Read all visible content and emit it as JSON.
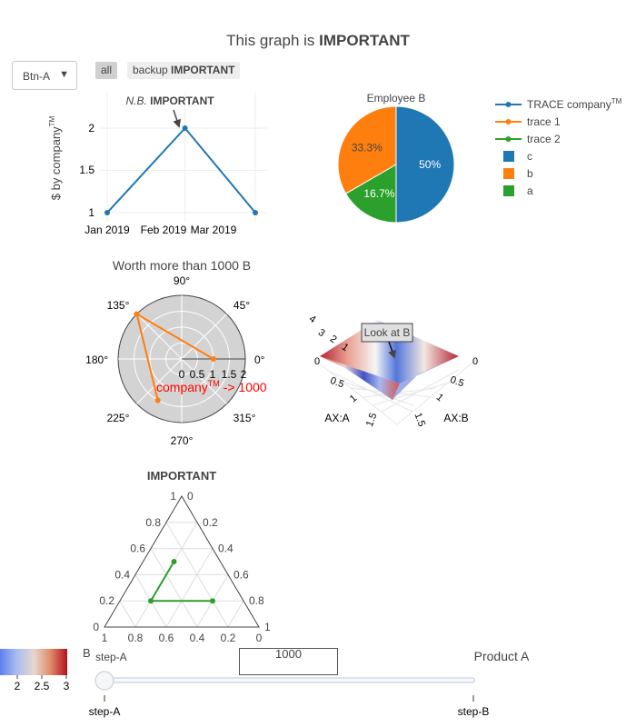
{
  "title_prefix": "This graph is ",
  "title_bold": "IMPORTANT",
  "dropdown": {
    "label": "Btn-A",
    "arrow": "▼"
  },
  "buttons": [
    {
      "prefix": "all",
      "bold": "",
      "active": true
    },
    {
      "prefix": "backup ",
      "bold": "IMPORTANT",
      "active": false
    }
  ],
  "colors": {
    "blue": "#1f77b4",
    "orange": "#ff7f0e",
    "green": "#2ca02c",
    "red": "#ff0000"
  },
  "line_chart": {
    "annotation_italic": "N.B.",
    "annotation_bold": "IMPORTANT",
    "ylabel": "$ by company",
    "ylabel_sup": "TM",
    "y_ticks": [
      "1",
      "1.5",
      "2"
    ],
    "x_ticks": [
      "Jan 2019",
      "Feb 2019",
      "Mar 2019"
    ]
  },
  "pie_chart": {
    "title": "Employee B"
  },
  "legend": {
    "trace0_prefix": "TRACE company",
    "trace0_sup": "TM",
    "trace1": "trace 1",
    "trace2": "trace 2",
    "c": "c",
    "b": "b",
    "a": "a"
  },
  "polar_chart": {
    "title": "Worth more than 1000 B",
    "angle_ticks": [
      "90°",
      "45°",
      "0°",
      "315°",
      "270°",
      "225°",
      "180°",
      "135°"
    ],
    "radial_ticks": [
      "0",
      "0.5",
      "1",
      "1.5",
      "2"
    ],
    "annotation_prefix": "company",
    "annotation_sup": "TM",
    "annotation_suffix": " -> 1000"
  },
  "surface_chart": {
    "annotation": "Look at B",
    "xaxis_title": "AX:A",
    "yaxis_title": "AX:B",
    "x_ticks": [
      "0",
      "0.5",
      "1",
      "1.5"
    ],
    "y_ticks": [
      "0",
      "0.5",
      "1",
      "1.5"
    ],
    "z_ticks": [
      "1",
      "2",
      "3",
      "4"
    ]
  },
  "ternary_chart": {
    "title": "IMPORTANT",
    "a_ticks": [
      "0",
      "0.2",
      "0.4",
      "0.6",
      "0.8",
      "1"
    ],
    "b_ticks": [
      "1",
      "0.8",
      "0.6",
      "0.4",
      "0.2",
      "0"
    ],
    "c_ticks": [
      "0",
      "0.2",
      "0.4",
      "0.6",
      "0.8",
      "1"
    ]
  },
  "colorbar": {
    "title": "B",
    "ticks": [
      "2",
      "2.5",
      "3"
    ]
  },
  "slider": {
    "current_prefix": "step-A",
    "steps": [
      "step-A",
      "step-B"
    ],
    "active_index": 0
  },
  "textbox_label": "1000",
  "product_label": "Product A",
  "chart_data": [
    {
      "type": "line",
      "x": [
        "2019-01-01",
        "2019-02-01",
        "2019-03-01"
      ],
      "series": [
        {
          "name": "TRACE company™",
          "values": [
            1,
            2,
            1
          ]
        }
      ],
      "ylim": [
        1,
        2
      ],
      "annotations": [
        {
          "text": "N.B. IMPORTANT",
          "x": "2019-02-01",
          "y": 2
        }
      ]
    },
    {
      "type": "pie",
      "title": "Employee B",
      "labels": [
        "a",
        "b",
        "c"
      ],
      "values": [
        1,
        2,
        3
      ],
      "percent_labels": [
        "16.7%",
        "33.3%",
        "50%"
      ],
      "colors": [
        "#2ca02c",
        "#ff7f0e",
        "#1f77b4"
      ]
    },
    {
      "type": "scatter",
      "subtype": "polar",
      "title": "Worth more than 1000 B",
      "series": [
        {
          "name": "trace 1",
          "r": [
            1,
            2,
            1.5
          ],
          "theta": [
            0,
            135,
            240
          ]
        }
      ],
      "radial_range": [
        0,
        2
      ]
    },
    {
      "type": "heatmap",
      "subtype": "surface",
      "z": [
        [
          1,
          2,
          1
        ],
        [
          3,
          1,
          3
        ],
        [
          1,
          2,
          1
        ]
      ],
      "xaxis_title": "AX:A",
      "yaxis_title": "AX:B",
      "annotations": [
        {
          "text": "Look at B"
        }
      ],
      "colorbar": {
        "title": "B",
        "range": [
          1.8,
          3
        ]
      }
    },
    {
      "type": "line",
      "subtype": "ternary",
      "title": "IMPORTANT",
      "series": [
        {
          "name": "trace 2",
          "a": [
            0.5,
            0.2,
            0.2
          ],
          "b": [
            0.3,
            0.6,
            0.2
          ],
          "c": [
            0.2,
            0.2,
            0.6
          ]
        }
      ]
    }
  ]
}
